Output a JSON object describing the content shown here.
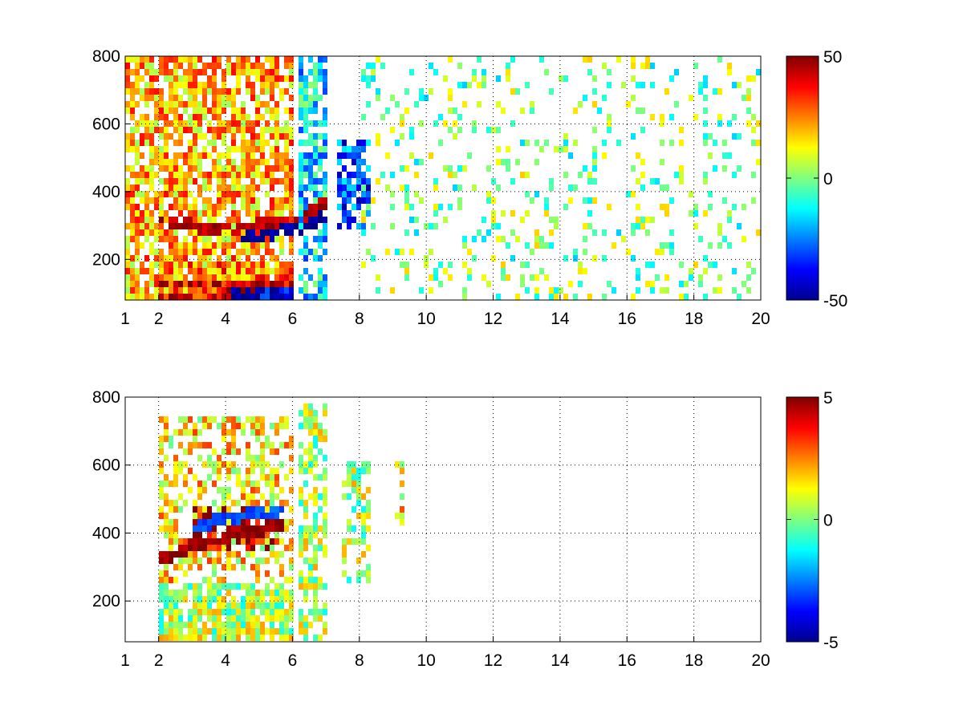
{
  "chart_data": [
    {
      "type": "heatmap",
      "title": "",
      "xlabel": "",
      "ylabel": "",
      "xlim": [
        1,
        20
      ],
      "ylim": [
        80,
        800
      ],
      "grid": true,
      "xticks": [
        1,
        2,
        4,
        6,
        8,
        10,
        12,
        14,
        16,
        18,
        20
      ],
      "xtick_labels": [
        "1",
        "2",
        "4",
        "6",
        "8",
        "10",
        "12",
        "14",
        "16",
        "18",
        "20"
      ],
      "yticks": [
        200,
        400,
        600,
        800
      ],
      "ytick_labels": [
        "200",
        "400",
        "600",
        "800"
      ],
      "colorbar": {
        "colormap": "jet",
        "min": -50,
        "max": 50,
        "ticks": [
          50,
          0,
          -50
        ],
        "tick_labels": [
          "50",
          "0",
          "-50"
        ],
        "placement": "right"
      },
      "features": [
        {
          "x_range": [
            1,
            6
          ],
          "y_range": [
            80,
            800
          ],
          "value": 20,
          "density": 0.75
        },
        {
          "x_range": [
            2,
            6
          ],
          "y_range": [
            80,
            140
          ],
          "value": 40,
          "density": 0.95
        },
        {
          "x_range": [
            4.2,
            6
          ],
          "y_range": [
            80,
            110
          ],
          "value": -45,
          "density": 0.95
        },
        {
          "x_range": [
            2,
            6
          ],
          "y_range": [
            140,
            200
          ],
          "value": 25,
          "density": 0.85
        },
        {
          "x_range": [
            6.2,
            7.1
          ],
          "y_range": [
            80,
            800
          ],
          "value": -15,
          "density": 0.6
        },
        {
          "x_range": [
            7.4,
            8.4
          ],
          "y_range": [
            280,
            560
          ],
          "value": -30,
          "density": 0.75
        },
        {
          "x_range": [
            8,
            20
          ],
          "y_range": [
            80,
            800
          ],
          "value": 0,
          "density": 0.15
        }
      ],
      "ridges": [
        {
          "x": [
            2,
            3,
            4,
            5,
            6,
            7
          ],
          "y": [
            320,
            300,
            280,
            300,
            300,
            370
          ],
          "value": 45
        },
        {
          "x": [
            4.5,
            5.2,
            6,
            6.5,
            7
          ],
          "y": [
            260,
            270,
            290,
            300,
            330
          ],
          "value": -48
        }
      ]
    },
    {
      "type": "heatmap",
      "title": "",
      "xlabel": "",
      "ylabel": "",
      "xlim": [
        1,
        20
      ],
      "ylim": [
        80,
        800
      ],
      "grid": true,
      "xticks": [
        1,
        2,
        4,
        6,
        8,
        10,
        12,
        14,
        16,
        18,
        20
      ],
      "xtick_labels": [
        "1",
        "2",
        "4",
        "6",
        "8",
        "10",
        "12",
        "14",
        "16",
        "18",
        "20"
      ],
      "yticks": [
        200,
        400,
        600,
        800
      ],
      "ytick_labels": [
        "200",
        "400",
        "600",
        "800"
      ],
      "colorbar": {
        "colormap": "jet",
        "min": -5,
        "max": 5,
        "ticks": [
          5,
          0,
          -5
        ],
        "tick_labels": [
          "5",
          "0",
          "-5"
        ],
        "placement": "right"
      },
      "features": [
        {
          "x_range": [
            2,
            6
          ],
          "y_range": [
            80,
            250
          ],
          "value": 0.5,
          "density": 0.85
        },
        {
          "x_range": [
            2,
            6
          ],
          "y_range": [
            250,
            750
          ],
          "value": 1.5,
          "density": 0.5
        },
        {
          "x_range": [
            3,
            5.5
          ],
          "y_range": [
            340,
            480
          ],
          "value": 4.5,
          "density": 0.55
        },
        {
          "x_range": [
            6.2,
            7.1
          ],
          "y_range": [
            80,
            780
          ],
          "value": 0.5,
          "density": 0.6
        },
        {
          "x_range": [
            7.5,
            8.4
          ],
          "y_range": [
            260,
            620
          ],
          "value": 0.5,
          "density": 0.55
        },
        {
          "x_range": [
            9.1,
            9.3
          ],
          "y_range": [
            420,
            620
          ],
          "value": 1.5,
          "density": 0.5
        }
      ],
      "ridges": [
        {
          "x": [
            2,
            3,
            4,
            5,
            5.7
          ],
          "y": [
            320,
            360,
            390,
            410,
            420
          ],
          "value": 4.8
        },
        {
          "x": [
            3,
            4,
            5,
            5.7
          ],
          "y": [
            420,
            440,
            460,
            470
          ],
          "value": -3
        }
      ]
    }
  ]
}
